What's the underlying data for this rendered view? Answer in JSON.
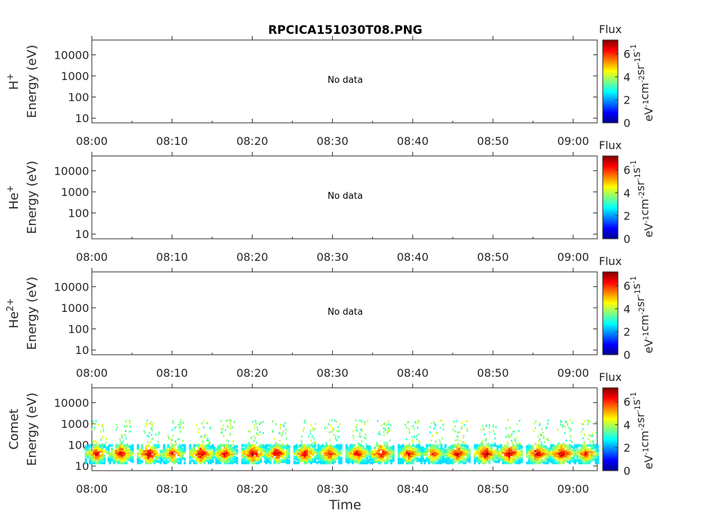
{
  "title": "RPCICA151030T08.PNG",
  "chart_data": {
    "type": "heatmap",
    "title": "RPCICA151030T08.PNG",
    "xlabel": "Time",
    "x_ticks": [
      "08:00",
      "08:10",
      "08:20",
      "08:30",
      "08:40",
      "08:50",
      "09:00"
    ],
    "x_range_minutes": [
      0,
      63
    ],
    "y_scale": "log",
    "y_ticks": [
      "10",
      "100",
      "1000",
      "10000"
    ],
    "y_range_eV": [
      6,
      50000
    ],
    "colorbar": {
      "label": "Flux",
      "unit_label": "eV-1 cm-2 sr-1 s-1",
      "ticks": [
        "0",
        "2",
        "4",
        "6"
      ],
      "range": [
        0,
        7.2
      ],
      "colormap": "jet"
    },
    "panels": [
      {
        "species": "H+",
        "ylabel": "Energy (eV)",
        "message": "No data"
      },
      {
        "species": "He+",
        "ylabel": "Energy (eV)",
        "message": "No data"
      },
      {
        "species": "He2+",
        "ylabel": "Energy (eV)",
        "message": "No data"
      },
      {
        "species": "Comet",
        "ylabel": "Energy (eV)",
        "message": "",
        "bursts": [
          {
            "t": 0.5,
            "peak_flux": 6.5
          },
          {
            "t": 3.5,
            "peak_flux": 6.8
          },
          {
            "t": 7.0,
            "peak_flux": 7.0
          },
          {
            "t": 10.0,
            "peak_flux": 6.5
          },
          {
            "t": 13.5,
            "peak_flux": 6.9
          },
          {
            "t": 16.5,
            "peak_flux": 6.6
          },
          {
            "t": 20.0,
            "peak_flux": 7.0
          },
          {
            "t": 23.0,
            "peak_flux": 6.8
          },
          {
            "t": 26.5,
            "peak_flux": 6.7
          },
          {
            "t": 29.5,
            "peak_flux": 6.5
          },
          {
            "t": 33.0,
            "peak_flux": 6.6
          },
          {
            "t": 36.0,
            "peak_flux": 6.9
          },
          {
            "t": 39.5,
            "peak_flux": 6.5
          },
          {
            "t": 42.5,
            "peak_flux": 6.2
          },
          {
            "t": 45.5,
            "peak_flux": 6.8
          },
          {
            "t": 49.0,
            "peak_flux": 7.0
          },
          {
            "t": 52.0,
            "peak_flux": 7.0
          },
          {
            "t": 55.5,
            "peak_flux": 6.9
          },
          {
            "t": 58.5,
            "peak_flux": 7.0
          },
          {
            "t": 61.5,
            "peak_flux": 6.5
          }
        ]
      }
    ]
  }
}
